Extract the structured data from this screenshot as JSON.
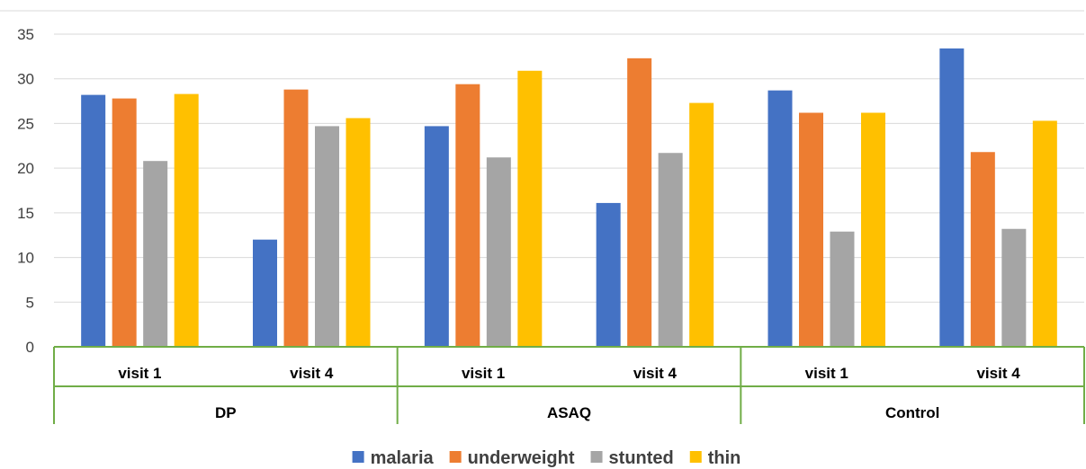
{
  "chart_data": {
    "type": "bar",
    "title": "",
    "xlabel": "",
    "ylabel": "",
    "ylim": [
      0,
      35
    ],
    "yticks": [
      0,
      5,
      10,
      15,
      20,
      25,
      30,
      35
    ],
    "grid": true,
    "legend_position": "bottom",
    "groups": [
      {
        "label": "DP",
        "categories": [
          "visit 1",
          "visit 4"
        ]
      },
      {
        "label": "ASAQ",
        "categories": [
          "visit 1",
          "visit 4"
        ]
      },
      {
        "label": "Control",
        "categories": [
          "visit 1",
          "visit 4"
        ]
      }
    ],
    "categories": [
      "visit 1",
      "visit 4",
      "visit 1",
      "visit 4",
      "visit 1",
      "visit 4"
    ],
    "series": [
      {
        "name": "malaria",
        "color": "#4472C4",
        "values": [
          28.2,
          12.0,
          24.7,
          16.1,
          28.7,
          33.4
        ]
      },
      {
        "name": "underweight",
        "color": "#ED7D31",
        "values": [
          27.8,
          28.8,
          29.4,
          32.3,
          26.2,
          21.8
        ]
      },
      {
        "name": "stunted",
        "color": "#A5A5A5",
        "values": [
          20.8,
          24.7,
          21.2,
          21.7,
          12.9,
          13.2
        ]
      },
      {
        "name": "thin",
        "color": "#FFC000",
        "values": [
          28.3,
          25.6,
          30.9,
          27.3,
          26.2,
          25.3
        ]
      }
    ]
  },
  "colors": {
    "gridline": "#D9D9D9",
    "axis_line": "#70AD47",
    "tick_text": "#404040",
    "category_text": "#000000"
  }
}
